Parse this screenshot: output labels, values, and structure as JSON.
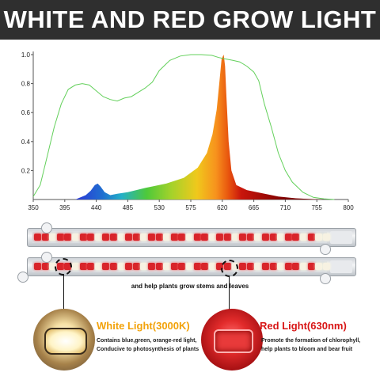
{
  "header": {
    "title": "WHITE AND RED GROW LIGHT"
  },
  "chart_data": {
    "type": "area",
    "title": "",
    "xlabel": "",
    "ylabel": "",
    "xlim": [
      350,
      800
    ],
    "ylim": [
      0,
      1.0
    ],
    "x_ticks": [
      350,
      395,
      440,
      485,
      530,
      575,
      620,
      665,
      710,
      755,
      800
    ],
    "y_ticks": [
      0.2,
      0.4,
      0.6,
      0.8,
      1.0
    ],
    "y_tick_labels": [
      "0.2",
      "0.4",
      "0.6",
      "0.8",
      "1.0"
    ],
    "grid": false,
    "legend": "none",
    "series": [
      {
        "style": "filled-spectrum",
        "x": [
          350,
          410,
          425,
          432,
          438,
          442,
          446,
          452,
          460,
          470,
          485,
          510,
          540,
          565,
          585,
          598,
          606,
          612,
          616,
          619,
          622,
          624,
          626,
          629,
          633,
          640,
          655,
          675,
          700,
          725,
          750,
          770
        ],
        "y": [
          0.0,
          0.0,
          0.03,
          0.06,
          0.1,
          0.11,
          0.09,
          0.05,
          0.03,
          0.04,
          0.05,
          0.08,
          0.11,
          0.15,
          0.22,
          0.32,
          0.45,
          0.62,
          0.82,
          0.97,
          1.0,
          0.92,
          0.7,
          0.4,
          0.2,
          0.1,
          0.065,
          0.045,
          0.02,
          0.008,
          0.003,
          0.0
        ]
      },
      {
        "style": "green-outline",
        "color": "#63d05b",
        "x": [
          350,
          360,
          370,
          380,
          390,
          400,
          410,
          420,
          430,
          440,
          450,
          460,
          470,
          480,
          490,
          500,
          510,
          520,
          530,
          545,
          560,
          575,
          590,
          605,
          615,
          625,
          635,
          645,
          655,
          665,
          672,
          680,
          690,
          700,
          710,
          720,
          735,
          750,
          765,
          780
        ],
        "y": [
          0.02,
          0.1,
          0.3,
          0.5,
          0.66,
          0.76,
          0.79,
          0.8,
          0.79,
          0.75,
          0.71,
          0.69,
          0.68,
          0.7,
          0.71,
          0.74,
          0.77,
          0.81,
          0.89,
          0.96,
          0.99,
          1.0,
          1.0,
          0.995,
          0.98,
          0.97,
          0.96,
          0.95,
          0.92,
          0.88,
          0.82,
          0.66,
          0.5,
          0.32,
          0.2,
          0.12,
          0.05,
          0.015,
          0.005,
          0.0
        ]
      }
    ]
  },
  "products": {
    "caption": "and help plants grow stems and leaves",
    "white_light": {
      "title": "White Light(3000K)",
      "lines": [
        "Contains blue,green, orange-red light,",
        "Conducive to photosynthesis of plants"
      ]
    },
    "red_light": {
      "title": "Red Light(630nm)",
      "lines": [
        "Promote the formation of chlorophyll,",
        "help plants to bloom and bear fruit"
      ]
    }
  }
}
